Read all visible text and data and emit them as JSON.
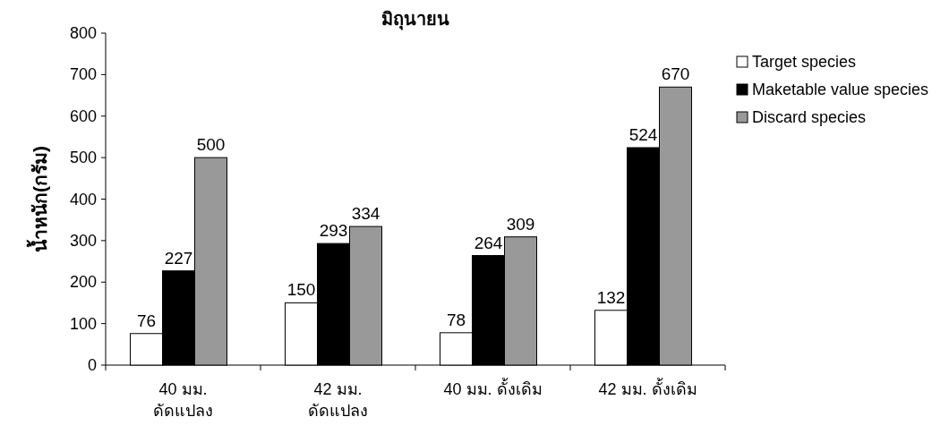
{
  "chart_data": {
    "type": "bar",
    "title": "มิถุนายน",
    "ylabel": "น้ำหนัก(กรัม)",
    "categories": [
      "40 มม.\nดัดแปลง",
      "42 มม.\nดัดแปลง",
      "40 มม. ดั้งเดิม",
      "42 มม. ดั้งเดิม"
    ],
    "series": [
      {
        "name": "Target species",
        "color": "#ffffff",
        "values": [
          76,
          150,
          78,
          132
        ]
      },
      {
        "name": "Maketable value species",
        "color": "#000000",
        "values": [
          227,
          293,
          264,
          524
        ]
      },
      {
        "name": "Discard species",
        "color": "#999999",
        "values": [
          500,
          334,
          309,
          670
        ]
      }
    ],
    "ylim": [
      0,
      800
    ],
    "yticks": [
      0,
      100,
      200,
      300,
      400,
      500,
      600,
      700,
      800
    ],
    "data_labels": true,
    "legend": "right",
    "grid": false
  }
}
